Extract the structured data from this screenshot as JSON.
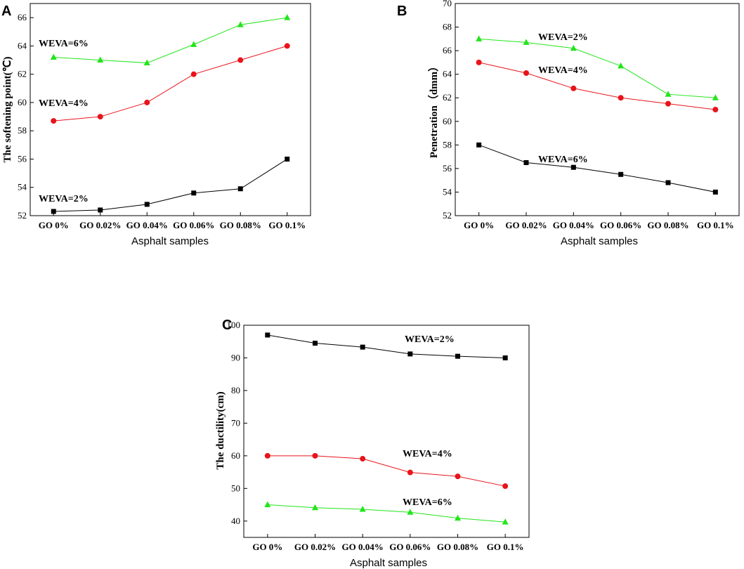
{
  "figure_labels": {
    "xlabel": "Asphalt samples"
  },
  "chart_data": [
    {
      "panel": "A",
      "type": "line",
      "categories": [
        "GO 0%",
        "GO 0.02%",
        "GO 0.04%",
        "GO 0.06%",
        "GO 0.08%",
        "GO 0.1%"
      ],
      "xlabel": "Asphalt samples",
      "ylabel": "The softening point(℃)",
      "ylim": [
        52,
        67
      ],
      "yticks": [
        52,
        54,
        56,
        58,
        60,
        62,
        64,
        66
      ],
      "series": [
        {
          "name": "WEVA=2%",
          "color": "#000000",
          "marker": "square",
          "values": [
            52.3,
            52.4,
            52.8,
            53.6,
            53.9,
            56.0
          ]
        },
        {
          "name": "WEVA=4%",
          "color": "#e8141b",
          "marker": "circle",
          "values": [
            58.7,
            59.0,
            60.0,
            62.0,
            63.0,
            64.0
          ]
        },
        {
          "name": "WEVA=6%",
          "color": "#22e51a",
          "marker": "triangle",
          "values": [
            63.2,
            63.0,
            62.8,
            64.1,
            65.5,
            66.0
          ]
        }
      ],
      "annotations": [
        "WEVA=6%",
        "WEVA=4%",
        "WEVA=2%"
      ]
    },
    {
      "panel": "B",
      "type": "line",
      "categories": [
        "GO 0%",
        "GO 0.02%",
        "GO 0.04%",
        "GO 0.06%",
        "GO 0.08%",
        "GO 0.1%"
      ],
      "xlabel": "Asphalt samples",
      "ylabel": "Penetration（dmm）",
      "ylim": [
        52,
        70
      ],
      "yticks": [
        52,
        54,
        56,
        58,
        60,
        62,
        64,
        66,
        68,
        70
      ],
      "series": [
        {
          "name": "WEVA=6%",
          "color": "#000000",
          "marker": "square",
          "values": [
            58.0,
            56.5,
            56.1,
            55.5,
            54.8,
            54.0
          ]
        },
        {
          "name": "WEVA=4%",
          "color": "#e8141b",
          "marker": "circle",
          "values": [
            65.0,
            64.1,
            62.8,
            62.0,
            61.5,
            61.0
          ]
        },
        {
          "name": "WEVA=2%",
          "color": "#22e51a",
          "marker": "triangle",
          "values": [
            67.0,
            66.7,
            66.2,
            64.7,
            62.3,
            62.0
          ]
        }
      ],
      "annotations": [
        "WEVA=2%",
        "WEVA=4%",
        "WEVA=6%"
      ]
    },
    {
      "panel": "C",
      "type": "line",
      "categories": [
        "GO 0%",
        "GO 0.02%",
        "GO 0.04%",
        "GO 0.06%",
        "GO 0.08%",
        "GO 0.1%"
      ],
      "xlabel": "Asphalt samples",
      "ylabel": "The ductility(cm)",
      "ylim": [
        35,
        100
      ],
      "yticks": [
        40,
        50,
        60,
        70,
        80,
        90,
        100
      ],
      "series": [
        {
          "name": "WEVA=2%",
          "color": "#000000",
          "marker": "square",
          "values": [
            97.0,
            94.5,
            93.3,
            91.2,
            90.5,
            90.0
          ]
        },
        {
          "name": "WEVA=4%",
          "color": "#e8141b",
          "marker": "circle",
          "values": [
            60.0,
            60.0,
            59.1,
            54.9,
            53.7,
            50.7
          ]
        },
        {
          "name": "WEVA=6%",
          "color": "#22e51a",
          "marker": "triangle",
          "values": [
            45.0,
            44.1,
            43.6,
            42.7,
            40.9,
            39.7
          ]
        }
      ],
      "annotations": [
        "WEVA=2%",
        "WEVA=4%",
        "WEVA=6%"
      ]
    }
  ]
}
